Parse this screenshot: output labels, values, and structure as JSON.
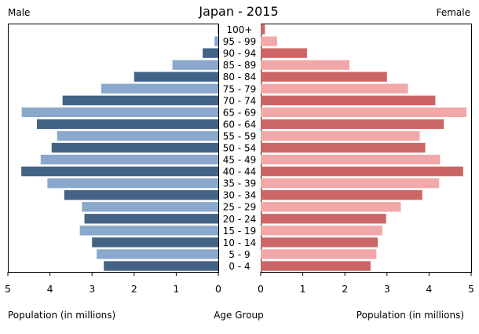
{
  "chart_data": {
    "type": "bar",
    "title": "Japan - 2015",
    "left_label": "Male",
    "right_label": "Female",
    "xlabel_left": "Population (in millions)",
    "xlabel_center": "Age Group",
    "xlabel_right": "Population (in millions)",
    "xlim": [
      0,
      5
    ],
    "xticks_left": [
      "5",
      "4",
      "3",
      "2",
      "1",
      "0"
    ],
    "xticks_right": [
      "0",
      "1",
      "2",
      "3",
      "4",
      "5"
    ],
    "categories": [
      "100+",
      "95 - 99",
      "90 - 94",
      "85 - 89",
      "80 - 84",
      "75 - 79",
      "70 - 74",
      "65 - 69",
      "60 - 64",
      "55 - 59",
      "50 - 54",
      "45 - 49",
      "40 - 44",
      "35 - 39",
      "30 - 34",
      "25 - 29",
      "20 - 24",
      "15 - 19",
      "10 - 14",
      "5 - 9",
      "0 - 4"
    ],
    "series": [
      {
        "name": "Male",
        "values": [
          0.01,
          0.09,
          0.37,
          1.09,
          2.0,
          2.78,
          3.7,
          4.67,
          4.31,
          3.83,
          3.96,
          4.22,
          4.68,
          4.06,
          3.66,
          3.24,
          3.18,
          3.29,
          3.0,
          2.89,
          2.72
        ]
      },
      {
        "name": "Female",
        "values": [
          0.1,
          0.39,
          1.1,
          2.11,
          3.0,
          3.5,
          4.15,
          4.89,
          4.35,
          3.78,
          3.91,
          4.26,
          4.81,
          4.24,
          3.84,
          3.33,
          2.98,
          2.89,
          2.78,
          2.75,
          2.61
        ]
      }
    ],
    "colors": {
      "male_dark": "#436386",
      "male_light": "#8aa8cb",
      "female_dark": "#cc6666",
      "female_light": "#f2a8a8"
    }
  }
}
